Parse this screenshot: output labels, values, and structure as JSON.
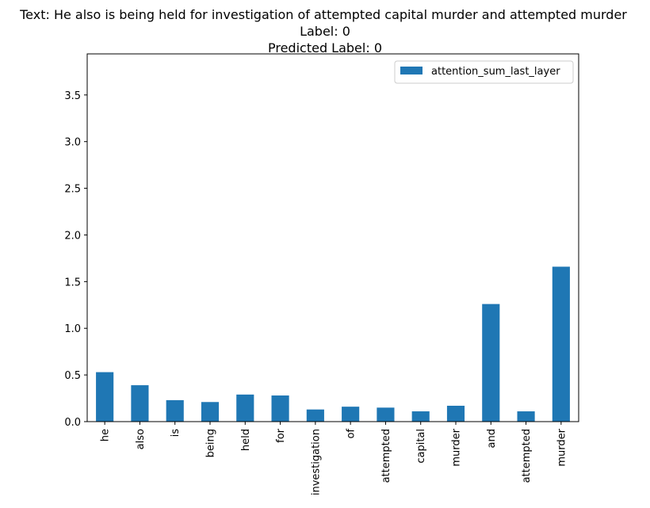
{
  "chart_data": {
    "type": "bar",
    "title_lines": [
      "Text: He also is being held for investigation of attempted capital murder and attempted murder",
      "Label: 0",
      "Predicted Label: 0"
    ],
    "categories": [
      "he",
      "also",
      "is",
      "being",
      "held",
      "for",
      "investigation",
      "of",
      "attempted",
      "capital",
      "murder",
      "and",
      "attempted",
      "murder"
    ],
    "series": [
      {
        "name": "attention_sum_last_layer",
        "color": "#1f77b4",
        "values": [
          0.53,
          0.39,
          0.23,
          0.21,
          0.29,
          0.28,
          0.13,
          0.16,
          0.15,
          0.11,
          0.17,
          1.26,
          0.11,
          1.66
        ]
      }
    ],
    "yticks": [
      0.0,
      0.5,
      1.0,
      1.5,
      2.0,
      2.5,
      3.0,
      3.5
    ],
    "ytick_labels": [
      "0.0",
      "0.5",
      "1.0",
      "1.5",
      "2.0",
      "2.5",
      "3.0",
      "3.5"
    ],
    "ylim": [
      0,
      3.94
    ],
    "xlabel": "",
    "ylabel": "",
    "grid": false,
    "legend_position": "top-right"
  }
}
